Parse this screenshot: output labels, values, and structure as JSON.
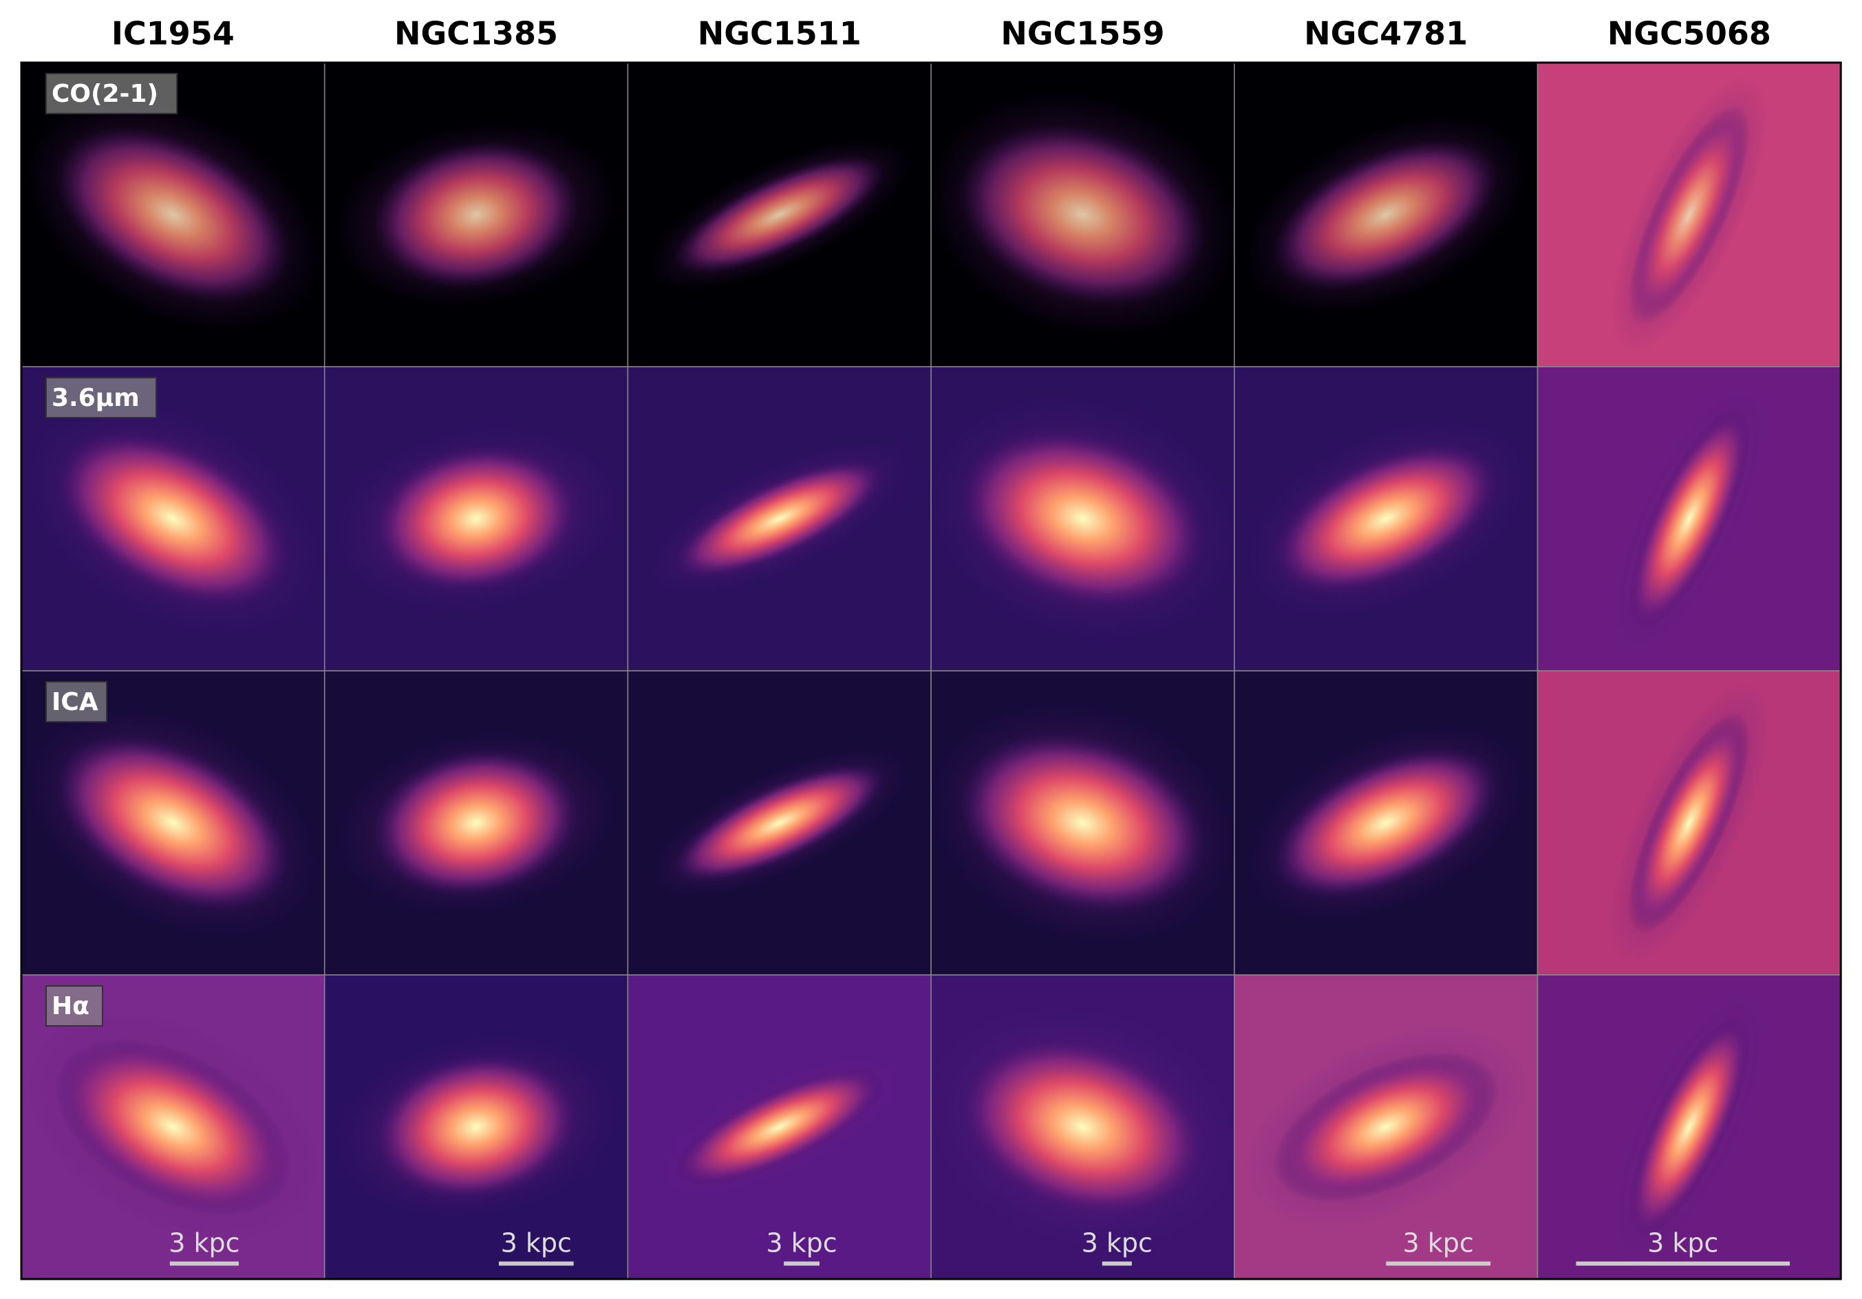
{
  "columns": [
    "IC1954",
    "NGC1385",
    "NGC1511",
    "NGC1559",
    "NGC4781",
    "NGC5068"
  ],
  "rows": [
    "CO(2-1)",
    "3.6μm",
    "ICA",
    "Hα"
  ],
  "scale_bars": [
    "3 kpc",
    "3 kpc",
    "3 kpc",
    "3 kpc",
    "3 kpc",
    "3 kpc"
  ]
}
